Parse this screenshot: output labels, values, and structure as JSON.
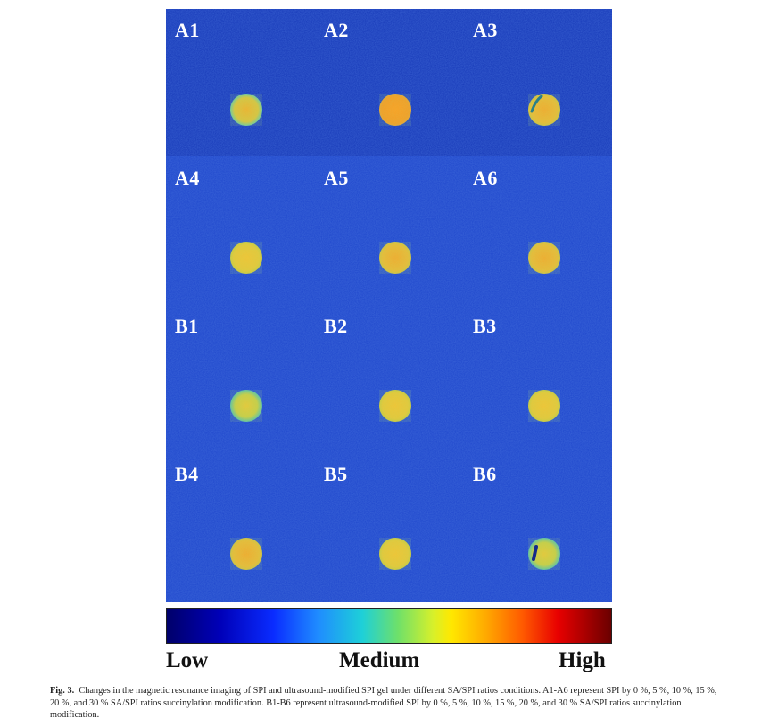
{
  "figure": {
    "panels": [
      {
        "label": "A1",
        "variant": "speckled"
      },
      {
        "label": "A2",
        "variant": "orange"
      },
      {
        "label": "A3",
        "variant": "streak"
      },
      {
        "label": "A4",
        "variant": "yellow"
      },
      {
        "label": "A5",
        "variant": "yellow-orange"
      },
      {
        "label": "A6",
        "variant": "yellow-orange"
      },
      {
        "label": "B1",
        "variant": "speckled-green"
      },
      {
        "label": "B2",
        "variant": "yellow"
      },
      {
        "label": "B3",
        "variant": "yellow"
      },
      {
        "label": "B4",
        "variant": "yellow-orange"
      },
      {
        "label": "B5",
        "variant": "yellow"
      },
      {
        "label": "B6",
        "variant": "dark-spot"
      }
    ],
    "colors": {
      "background_top": "#1638b8",
      "background_rest": "#1e46cc",
      "label": "#ffffff"
    }
  },
  "colorbar": {
    "low": "Low",
    "medium": "Medium",
    "high": "High"
  },
  "caption": {
    "fig_number": "Fig. 3.",
    "text": "Changes in the magnetic resonance imaging of SPI and ultrasound-modified SPI gel under different SA/SPI ratios conditions. A1-A6 represent SPI by 0 %, 5 %, 10 %, 15 %, 20 %, and 30 % SA/SPI ratios succinylation modification. B1-B6 represent ultrasound-modified SPI by 0 %, 5 %, 10 %, 15 %, 20 %, and 30 % SA/SPI ratios succinylation modification."
  }
}
